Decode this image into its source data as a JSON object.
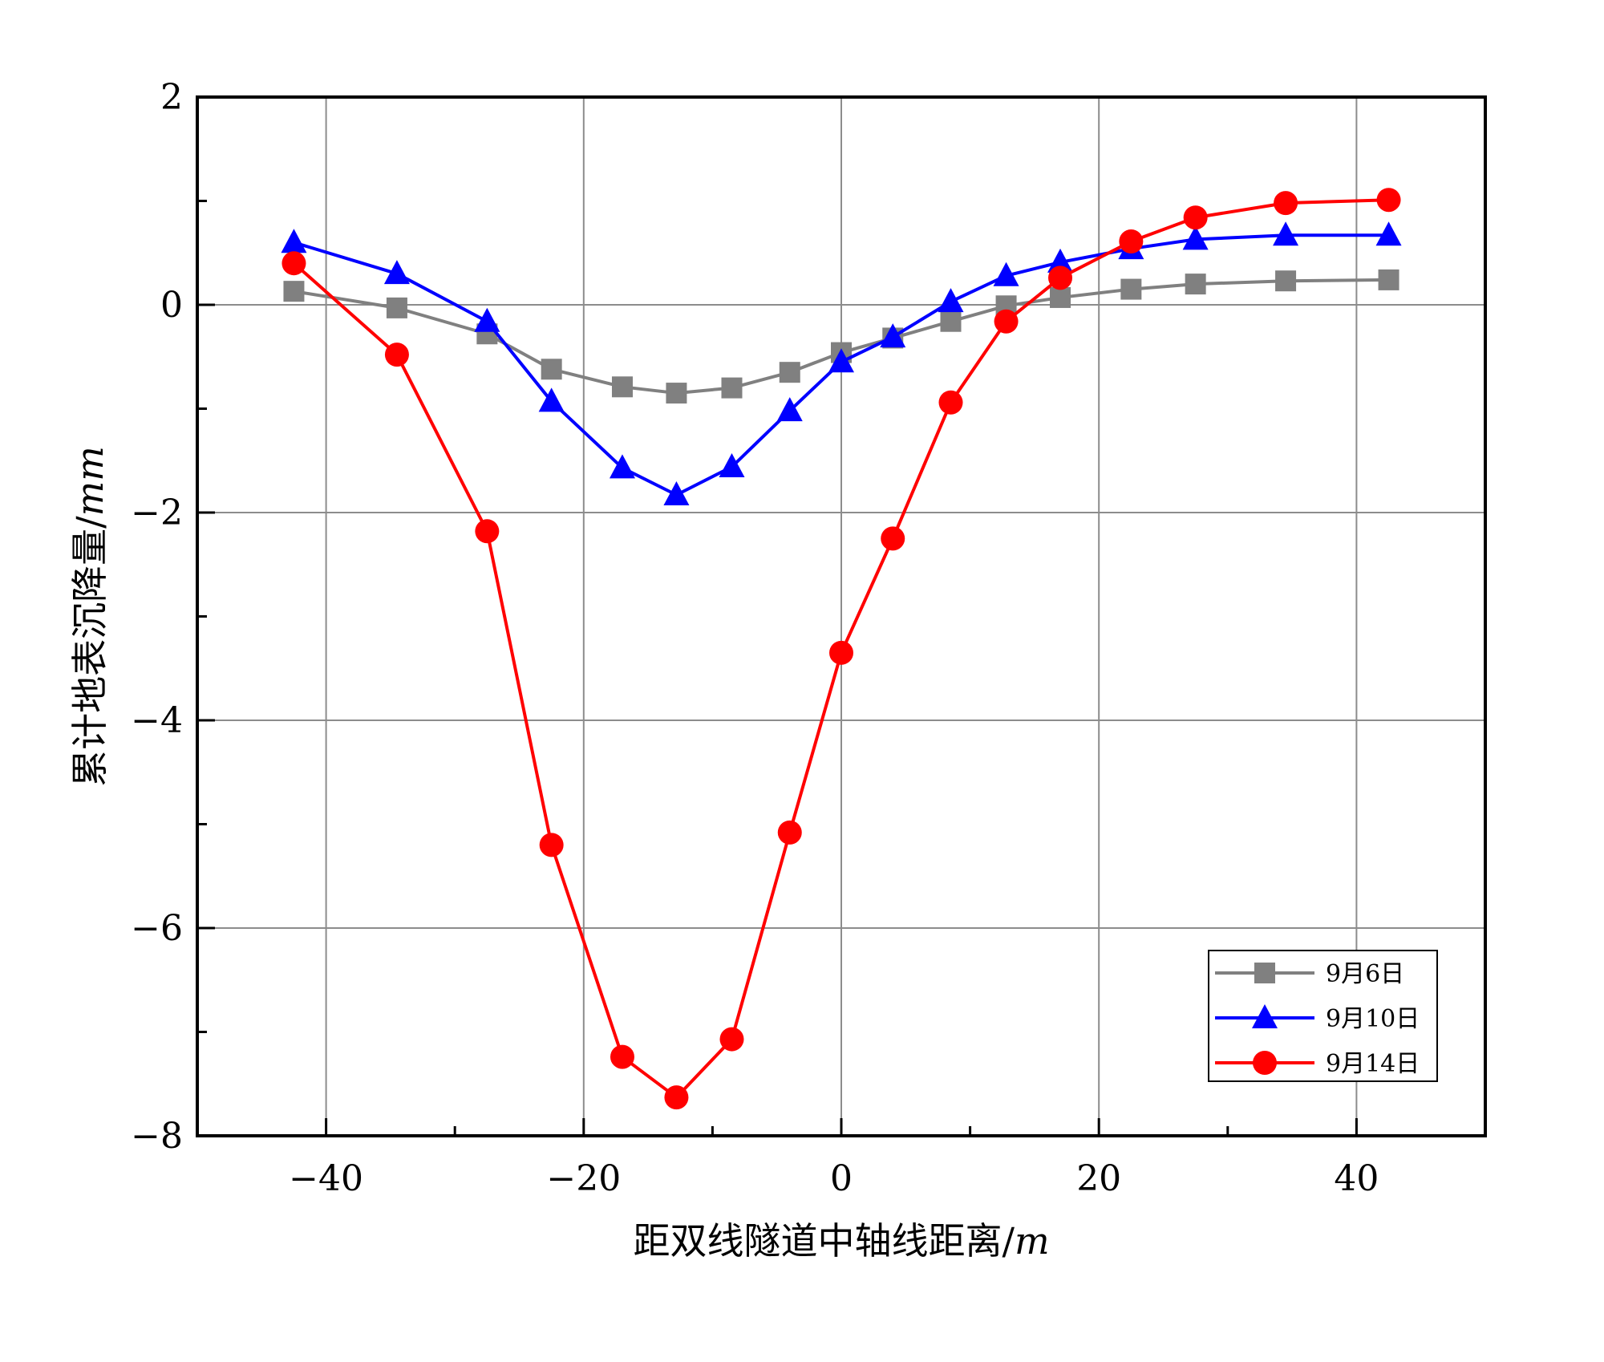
{
  "chart_data": {
    "type": "line",
    "xlabel_main": "距双线隧道中轴线距离/",
    "xlabel_unit": "m",
    "ylabel_main": "累计地表沉降量/",
    "ylabel_unit": "mm",
    "xlim": [
      -50,
      50
    ],
    "ylim": [
      -8,
      2
    ],
    "xticks": [
      -40,
      -20,
      0,
      20,
      40
    ],
    "yticks": [
      2,
      0,
      -2,
      -4,
      -6,
      -8
    ],
    "xtick_labels": [
      "−40",
      "−20",
      "0",
      "20",
      "40"
    ],
    "ytick_labels": [
      "2",
      "0",
      "−2",
      "−4",
      "−6",
      "−8"
    ],
    "grid": true,
    "legend_position": "bottom-right",
    "x": [
      -42.5,
      -34.5,
      -27.5,
      -22.5,
      -17.0,
      -12.8,
      -8.5,
      -4.0,
      0.0,
      4.0,
      8.5,
      12.8,
      17.0,
      22.5,
      27.5,
      34.5,
      42.5
    ],
    "series": [
      {
        "name": "9月6日",
        "color": "#808080",
        "marker": "square",
        "values": [
          0.13,
          -0.03,
          -0.28,
          -0.62,
          -0.79,
          -0.85,
          -0.8,
          -0.65,
          -0.46,
          -0.32,
          -0.16,
          -0.01,
          0.07,
          0.15,
          0.2,
          0.23,
          0.24
        ]
      },
      {
        "name": "9月10日",
        "color": "#0000ff",
        "marker": "triangle",
        "values": [
          0.6,
          0.3,
          -0.16,
          -0.93,
          -1.57,
          -1.83,
          -1.56,
          -1.02,
          -0.55,
          -0.31,
          0.03,
          0.28,
          0.41,
          0.54,
          0.63,
          0.67,
          0.67
        ]
      },
      {
        "name": "9月14日",
        "color": "#ff0000",
        "marker": "circle",
        "values": [
          0.4,
          -0.48,
          -2.18,
          -5.2,
          -7.24,
          -7.63,
          -7.07,
          -5.08,
          -3.35,
          -2.25,
          -0.94,
          -0.16,
          0.26,
          0.61,
          0.84,
          0.98,
          1.01
        ]
      }
    ]
  }
}
